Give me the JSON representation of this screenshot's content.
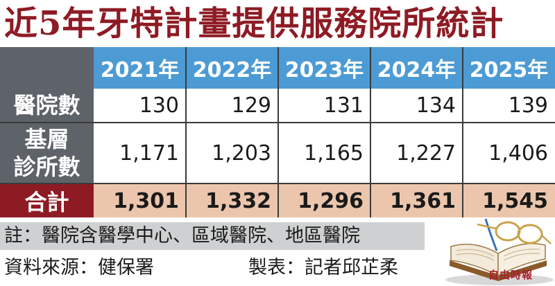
{
  "title": "近5年牙特計畫提供服務院所統計",
  "chart_data": {
    "type": "table",
    "columns": [
      "2021年",
      "2022年",
      "2023年",
      "2024年",
      "2025年"
    ],
    "rows": [
      {
        "label": "醫院數",
        "label_lines": [
          "醫院數"
        ],
        "values": [
          "130",
          "129",
          "131",
          "134",
          "139"
        ]
      },
      {
        "label": "基層診所數",
        "label_lines": [
          "基層",
          "診所數"
        ],
        "values": [
          "1,171",
          "1,203",
          "1,165",
          "1,227",
          "1,406"
        ]
      }
    ],
    "total": {
      "label": "合計",
      "values": [
        "1,301",
        "1,332",
        "1,296",
        "1,361",
        "1,545"
      ]
    }
  },
  "note": "註：醫院含醫學中心、區域醫院、地區醫院",
  "source": "資料來源：健保署",
  "maker": "製表：記者邱芷柔",
  "logo": "自由時報",
  "colors": {
    "title": "#8e1b24",
    "header": "#4c9bd4",
    "row_label": "#5e6269",
    "total_label": "#8e1b24",
    "total_row": "#ebc6ad",
    "note_bg": "#cfd0d1"
  },
  "icons": [
    "book-glasses-illustration"
  ]
}
